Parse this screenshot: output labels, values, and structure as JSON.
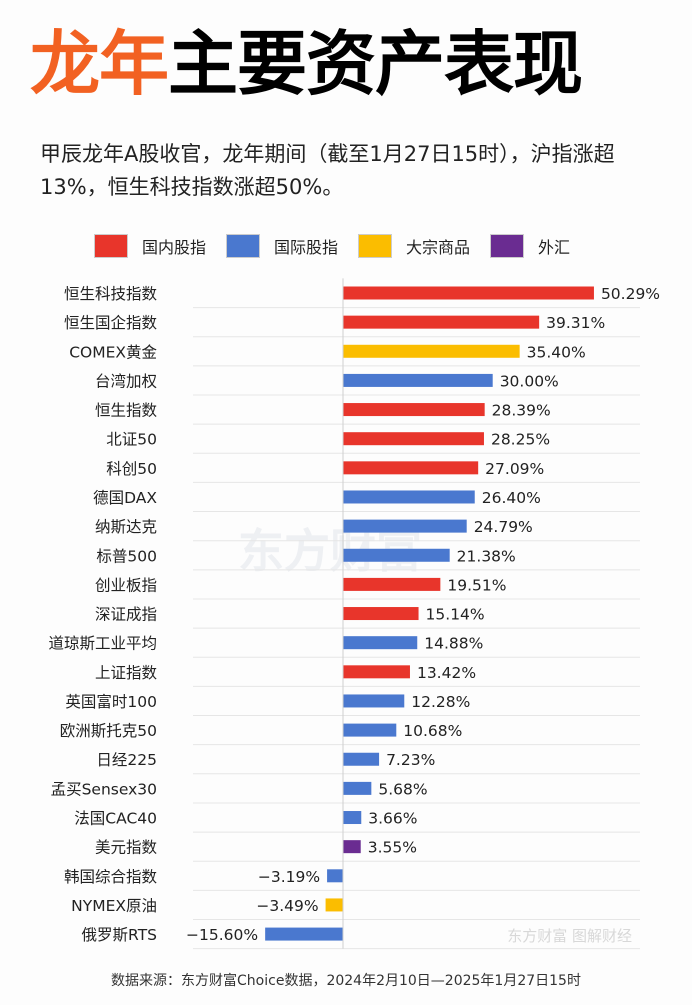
{
  "title": {
    "highlight": "龙年",
    "rest": "主要资产表现",
    "highlight_color": "#f26122"
  },
  "subtitle": "甲辰龙年A股收官，龙年期间（截至1月27日15时），沪指涨超13%，恒生科技指数涨超50%。",
  "source": "数据来源：东方财富Choice数据，2024年2月10日—2025年1月27日15时",
  "watermark": {
    "main": "东方财富",
    "corner": "东方财富 图解财经"
  },
  "chart_data": {
    "type": "bar",
    "orientation": "horizontal",
    "unit": "%",
    "legend": [
      {
        "key": "domestic",
        "label": "国内股指",
        "color": "#e8352b"
      },
      {
        "key": "intl",
        "label": "国际股指",
        "color": "#4a78cf"
      },
      {
        "key": "commodity",
        "label": "大宗商品",
        "color": "#fbbd00"
      },
      {
        "key": "fx",
        "label": "外汇",
        "color": "#6a2c91"
      }
    ],
    "legend_position": "top",
    "categories": [
      "恒生科技指数",
      "恒生国企指数",
      "COMEX黄金",
      "台湾加权",
      "恒生指数",
      "北证50",
      "科创50",
      "德国DAX",
      "纳斯达克",
      "标普500",
      "创业板指",
      "深证成指",
      "道琼斯工业平均",
      "上证指数",
      "英国富时100",
      "欧洲斯托克50",
      "日经225",
      "孟买Sensex30",
      "法国CAC40",
      "美元指数",
      "韩国综合指数",
      "NYMEX原油",
      "俄罗斯RTS"
    ],
    "values": [
      50.29,
      39.31,
      35.4,
      30.0,
      28.39,
      28.25,
      27.09,
      26.4,
      24.79,
      21.38,
      19.51,
      15.14,
      14.88,
      13.42,
      12.28,
      10.68,
      7.23,
      5.68,
      3.66,
      3.55,
      -3.19,
      -3.49,
      -15.6
    ],
    "labels": [
      "50.29%",
      "39.31%",
      "35.40%",
      "30.00%",
      "28.39%",
      "28.25%",
      "27.09%",
      "26.40%",
      "24.79%",
      "21.38%",
      "19.51%",
      "15.14%",
      "14.88%",
      "13.42%",
      "12.28%",
      "10.68%",
      "7.23%",
      "5.68%",
      "3.66%",
      "3.55%",
      "−3.19%",
      "−3.49%",
      "−15.60%"
    ],
    "groups": [
      "domestic",
      "domestic",
      "commodity",
      "intl",
      "domestic",
      "domestic",
      "domestic",
      "intl",
      "intl",
      "intl",
      "domestic",
      "domestic",
      "intl",
      "domestic",
      "intl",
      "intl",
      "intl",
      "intl",
      "intl",
      "fx",
      "intl",
      "commodity",
      "intl"
    ],
    "grid": true
  }
}
